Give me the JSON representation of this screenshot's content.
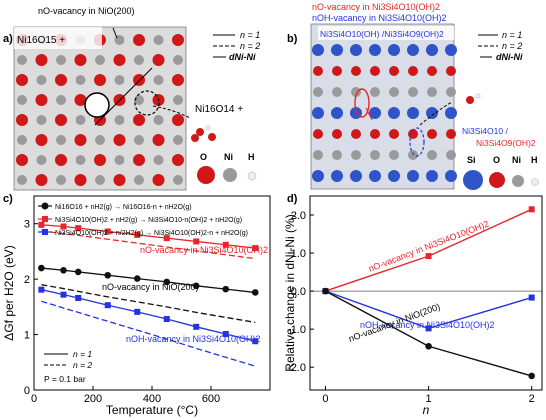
{
  "panels": {
    "a": {
      "label": "a)",
      "top_text": "nO-vacancy in NiO(200)",
      "formula_left": "Ni16O15 +",
      "formula_right": "Ni16O14 +",
      "legend_n1": "n = 1",
      "legend_n2": "n = 2",
      "legend_scale": "dNi-Ni",
      "atom_labels": [
        "O",
        "Ni",
        "H"
      ]
    },
    "b": {
      "label": "b)",
      "top_line1": "nO-vacancy in Ni3Si4O10(OH)2",
      "top_line2": "nOH-vacancy in Ni3Si4O10(OH)2",
      "slab_label": "Ni3Si4O10(OH) /Ni3Si4O9(OH)2",
      "side_label_1": "Ni3Si4O10 /",
      "side_label_2": "Ni3Si4O9(OH)2",
      "legend_n1": "n = 1",
      "legend_n2": "n = 2",
      "legend_scale": "dNi-Ni",
      "atom_labels": [
        "Si",
        "O",
        "Ni",
        "H"
      ]
    },
    "c": {
      "label": "c)"
    },
    "d": {
      "label": "d)"
    }
  },
  "colors": {
    "black": "#111111",
    "red": "#e8262a",
    "blue": "#2432e0",
    "dashed": "#333333",
    "o_atom": "#d01818",
    "ni_atom": "#9a9a9a",
    "si_atom": "#2f54c8"
  },
  "chart_data": [
    {
      "type": "line",
      "panel": "c",
      "xlabel": "Temperature (°C)",
      "ylabel": "ΔGf per H2O (eV)",
      "xlim": [
        0,
        800
      ],
      "ylim": [
        0,
        3.5
      ],
      "x_ticks": [
        0,
        200,
        400,
        600
      ],
      "y_ticks": [
        0,
        1,
        2,
        3
      ],
      "x": [
        25,
        100,
        150,
        250,
        350,
        450,
        550,
        650,
        750
      ],
      "series": [
        {
          "name": "Ni16O16 + nH2(g) → Ni16O16-n + nH2O(g)",
          "color": "black",
          "marker": "circle",
          "values": [
            2.2,
            2.16,
            2.13,
            2.07,
            2.01,
            1.95,
            1.88,
            1.82,
            1.76
          ],
          "n2_values": [
            1.9,
            1.83,
            1.78,
            1.68,
            1.59,
            1.5,
            1.4,
            1.31,
            1.22
          ]
        },
        {
          "name": "Ni3Si4O10(OH)2 + nH2(g) → Ni3Si4O10-n(OH)2 + nH2O(g)",
          "color": "red",
          "marker": "square",
          "values": [
            2.98,
            2.95,
            2.92,
            2.86,
            2.8,
            2.74,
            2.68,
            2.62,
            2.56
          ],
          "n2_values": [
            2.87,
            2.82,
            2.79,
            2.72,
            2.65,
            2.58,
            2.51,
            2.44,
            2.37
          ]
        },
        {
          "name": "Ni3Si4O10(OH)2 + n/2H2(g) → Ni3Si4O10(OH)2-n + nH2O(g)",
          "color": "blue",
          "marker": "square",
          "values": [
            1.81,
            1.72,
            1.66,
            1.53,
            1.41,
            1.28,
            1.14,
            1.01,
            0.88
          ],
          "n2_values": [
            1.6,
            1.48,
            1.4,
            1.24,
            1.08,
            0.92,
            0.75,
            0.59,
            0.43
          ]
        }
      ],
      "annotations": [
        "nO-vacancy in Ni3Si4O10(OH)2",
        "nO-vacancy in NiO(200)",
        "nOH-vacancy in Ni3Si4O10(OH)2"
      ],
      "legend_lines": [
        "n = 1",
        "n = 2"
      ],
      "pressure_note": "P = 0.1 bar"
    },
    {
      "type": "line",
      "panel": "d",
      "xlabel": "n",
      "ylabel": "Relative change in dNi-Ni (%)",
      "xlim": [
        -0.15,
        2.1
      ],
      "ylim": [
        -2.6,
        2.5
      ],
      "x_ticks": [
        0,
        1,
        2
      ],
      "y_ticks": [
        2.0,
        1.0,
        0.0,
        -1.0,
        -2.0
      ],
      "x": [
        0,
        1,
        2
      ],
      "series": [
        {
          "name": "nO-vacancy in Ni3Si4O10(OH)2",
          "color": "red",
          "marker": "square",
          "values": [
            0,
            0.92,
            2.15
          ]
        },
        {
          "name": "nOH-vacancy in Ni3Si4O10(OH)2",
          "color": "blue",
          "marker": "square",
          "values": [
            0,
            -0.98,
            -0.17
          ]
        },
        {
          "name": "nO-vacancy in NiO(200)",
          "color": "black",
          "marker": "circle",
          "values": [
            0,
            -1.45,
            -2.23
          ]
        }
      ]
    }
  ]
}
